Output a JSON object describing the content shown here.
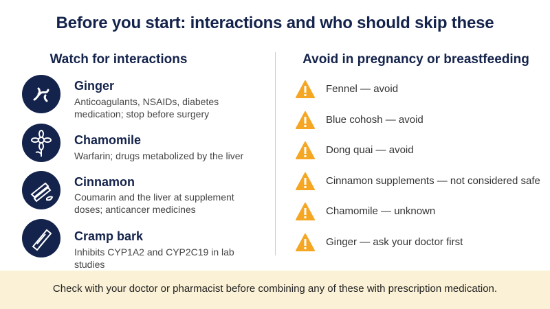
{
  "header": {
    "title": "Before you start: interactions and who should skip these"
  },
  "left": {
    "heading": "Watch for interactions",
    "items": [
      {
        "name": "Ginger",
        "desc": "Anticoagulants, NSAIDs, diabetes medication; stop before surgery"
      },
      {
        "name": "Chamomile",
        "desc": "Warfarin; drugs metabolized by the liver"
      },
      {
        "name": "Cinnamon",
        "desc": "Coumarin and the liver at supplement doses; anticancer medicines"
      },
      {
        "name": "Cramp bark",
        "desc": "Inhibits CYP1A2 and CYP2C19 in lab studies"
      }
    ]
  },
  "right": {
    "heading": "Avoid in pregnancy or breastfeeding",
    "items": [
      "Fennel — avoid",
      "Blue cohosh — avoid",
      "Dong quai — avoid",
      "Cinnamon supplements — not considered safe",
      "Chamomile — unknown",
      "Ginger — ask your doctor first"
    ]
  },
  "footer": {
    "text": "Check with your doctor or pharmacist before combining any of these with prescription medication."
  }
}
